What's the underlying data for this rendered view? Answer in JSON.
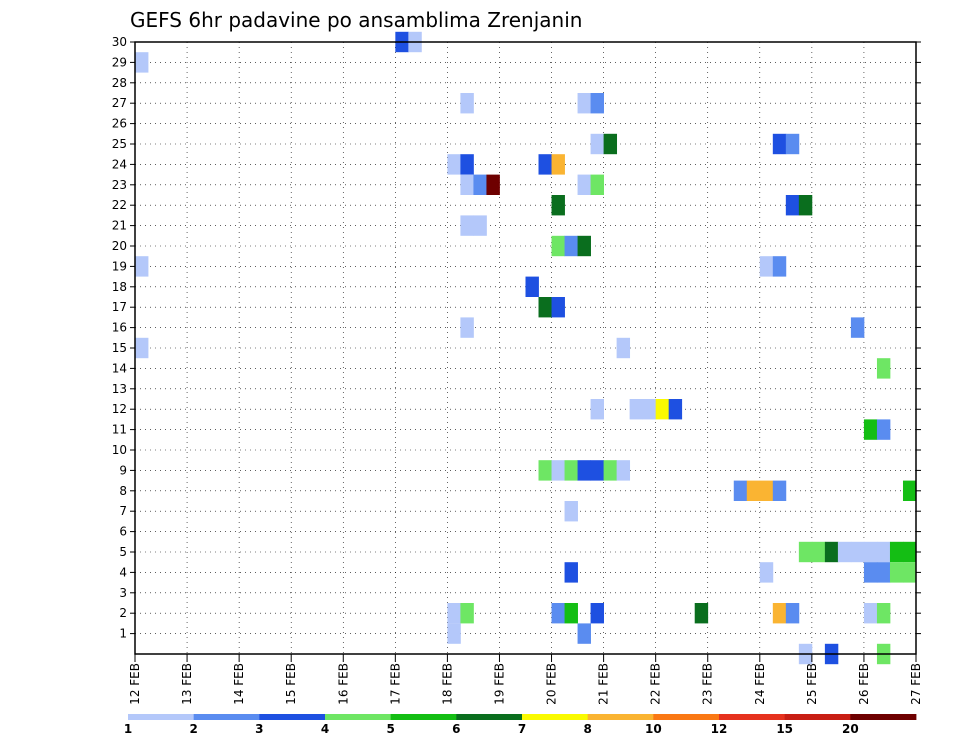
{
  "chart_data": {
    "type": "heatmap",
    "title": "GEFS 6hr padavine po ansamblima Zrenjanin",
    "xlabel": "",
    "ylabel": "",
    "x_tick_labels": [
      "12 FEB",
      "13 FEB",
      "14 FEB",
      "15 FEB",
      "16 FEB",
      "17 FEB",
      "18 FEB",
      "19 FEB",
      "20 FEB",
      "21 FEB",
      "22 FEB",
      "23 FEB",
      "24 FEB",
      "25 FEB",
      "26 FEB",
      "27 FEB"
    ],
    "y_tick_labels": [
      "1",
      "2",
      "3",
      "4",
      "5",
      "6",
      "7",
      "8",
      "9",
      "10",
      "11",
      "12",
      "13",
      "14",
      "15",
      "16",
      "17",
      "18",
      "19",
      "20",
      "21",
      "22",
      "23",
      "24",
      "25",
      "26",
      "27",
      "28",
      "29",
      "30"
    ],
    "xlim_steps": [
      0,
      60
    ],
    "ylim_members": [
      0,
      30
    ],
    "grid": true,
    "legend_position": "bottom",
    "colorbar": {
      "ticks": [
        "1",
        "2",
        "3",
        "4",
        "5",
        "6",
        "7",
        "8",
        "10",
        "12",
        "15",
        "20"
      ],
      "colors": [
        "#b4c8fa",
        "#5a8cf0",
        "#1e50e1",
        "#6ee664",
        "#14be14",
        "#0a6e1e",
        "#fafa00",
        "#fab432",
        "#fa7814",
        "#e6321e",
        "#c81e14",
        "#6e0000"
      ]
    },
    "cells": [
      {
        "step": 0,
        "member": 29,
        "bin": 0
      },
      {
        "step": 0,
        "member": 19,
        "bin": 0
      },
      {
        "step": 0,
        "member": 15,
        "bin": 0
      },
      {
        "step": 20,
        "member": 30,
        "bin": 2
      },
      {
        "step": 21,
        "member": 30,
        "bin": 0
      },
      {
        "step": 25,
        "member": 27,
        "bin": 0
      },
      {
        "step": 24,
        "member": 24,
        "bin": 0
      },
      {
        "step": 25,
        "member": 24,
        "bin": 2
      },
      {
        "step": 25,
        "member": 23,
        "bin": 0
      },
      {
        "step": 26,
        "member": 23,
        "bin": 1
      },
      {
        "step": 27,
        "member": 23,
        "bin": 11
      },
      {
        "step": 25,
        "member": 21,
        "bin": 0
      },
      {
        "step": 26,
        "member": 21,
        "bin": 0
      },
      {
        "step": 25,
        "member": 16,
        "bin": 0
      },
      {
        "step": 24,
        "member": 2,
        "bin": 0
      },
      {
        "step": 25,
        "member": 2,
        "bin": 3
      },
      {
        "step": 24,
        "member": 1,
        "bin": 0
      },
      {
        "step": 30,
        "member": 18,
        "bin": 2
      },
      {
        "step": 31,
        "member": 24,
        "bin": 2
      },
      {
        "step": 32,
        "member": 24,
        "bin": 7
      },
      {
        "step": 32,
        "member": 22,
        "bin": 5
      },
      {
        "step": 32,
        "member": 20,
        "bin": 3
      },
      {
        "step": 33,
        "member": 20,
        "bin": 1
      },
      {
        "step": 34,
        "member": 20,
        "bin": 5
      },
      {
        "step": 31,
        "member": 17,
        "bin": 5
      },
      {
        "step": 32,
        "member": 17,
        "bin": 2
      },
      {
        "step": 31,
        "member": 9,
        "bin": 3
      },
      {
        "step": 32,
        "member": 9,
        "bin": 0
      },
      {
        "step": 33,
        "member": 9,
        "bin": 3
      },
      {
        "step": 34,
        "member": 9,
        "bin": 2
      },
      {
        "step": 35,
        "member": 9,
        "bin": 2
      },
      {
        "step": 36,
        "member": 9,
        "bin": 3
      },
      {
        "step": 37,
        "member": 9,
        "bin": 0
      },
      {
        "step": 33,
        "member": 7,
        "bin": 0
      },
      {
        "step": 33,
        "member": 4,
        "bin": 2
      },
      {
        "step": 32,
        "member": 2,
        "bin": 1
      },
      {
        "step": 33,
        "member": 2,
        "bin": 4
      },
      {
        "step": 35,
        "member": 2,
        "bin": 2
      },
      {
        "step": 34,
        "member": 1,
        "bin": 1
      },
      {
        "step": 34,
        "member": 27,
        "bin": 0
      },
      {
        "step": 35,
        "member": 27,
        "bin": 1
      },
      {
        "step": 35,
        "member": 25,
        "bin": 0
      },
      {
        "step": 36,
        "member": 25,
        "bin": 5
      },
      {
        "step": 34,
        "member": 23,
        "bin": 0
      },
      {
        "step": 35,
        "member": 23,
        "bin": 3
      },
      {
        "step": 35,
        "member": 12,
        "bin": 0
      },
      {
        "step": 37,
        "member": 15,
        "bin": 0
      },
      {
        "step": 38,
        "member": 12,
        "bin": 0
      },
      {
        "step": 39,
        "member": 12,
        "bin": 0
      },
      {
        "step": 40,
        "member": 12,
        "bin": 6
      },
      {
        "step": 41,
        "member": 12,
        "bin": 2
      },
      {
        "step": 43,
        "member": 2,
        "bin": 5
      },
      {
        "step": 46,
        "member": 8,
        "bin": 1
      },
      {
        "step": 47,
        "member": 8,
        "bin": 7
      },
      {
        "step": 48,
        "member": 8,
        "bin": 7
      },
      {
        "step": 49,
        "member": 8,
        "bin": 1
      },
      {
        "step": 48,
        "member": 19,
        "bin": 0
      },
      {
        "step": 49,
        "member": 19,
        "bin": 1
      },
      {
        "step": 48,
        "member": 4,
        "bin": 0
      },
      {
        "step": 49,
        "member": 2,
        "bin": 7
      },
      {
        "step": 50,
        "member": 2,
        "bin": 1
      },
      {
        "step": 49,
        "member": 25,
        "bin": 2
      },
      {
        "step": 50,
        "member": 25,
        "bin": 1
      },
      {
        "step": 50,
        "member": 22,
        "bin": 2
      },
      {
        "step": 51,
        "member": 22,
        "bin": 5
      },
      {
        "step": 51,
        "member": 5,
        "bin": 3
      },
      {
        "step": 52,
        "member": 5,
        "bin": 3
      },
      {
        "step": 53,
        "member": 5,
        "bin": 5
      },
      {
        "step": 54,
        "member": 5,
        "bin": 0
      },
      {
        "step": 55,
        "member": 5,
        "bin": 0
      },
      {
        "step": 56,
        "member": 5,
        "bin": 0
      },
      {
        "step": 57,
        "member": 5,
        "bin": 0
      },
      {
        "step": 58,
        "member": 5,
        "bin": 4
      },
      {
        "step": 59,
        "member": 5,
        "bin": 4
      },
      {
        "step": 51,
        "member": 0,
        "bin": 0
      },
      {
        "step": 53,
        "member": 0,
        "bin": 2
      },
      {
        "step": 55,
        "member": 16,
        "bin": 1
      },
      {
        "step": 56,
        "member": 11,
        "bin": 4
      },
      {
        "step": 57,
        "member": 11,
        "bin": 1
      },
      {
        "step": 56,
        "member": 4,
        "bin": 1
      },
      {
        "step": 57,
        "member": 4,
        "bin": 1
      },
      {
        "step": 58,
        "member": 4,
        "bin": 3
      },
      {
        "step": 59,
        "member": 4,
        "bin": 3
      },
      {
        "step": 56,
        "member": 2,
        "bin": 0
      },
      {
        "step": 57,
        "member": 2,
        "bin": 3
      },
      {
        "step": 57,
        "member": 14,
        "bin": 3
      },
      {
        "step": 57,
        "member": 0,
        "bin": 3
      },
      {
        "step": 59,
        "member": 8,
        "bin": 4
      }
    ]
  }
}
